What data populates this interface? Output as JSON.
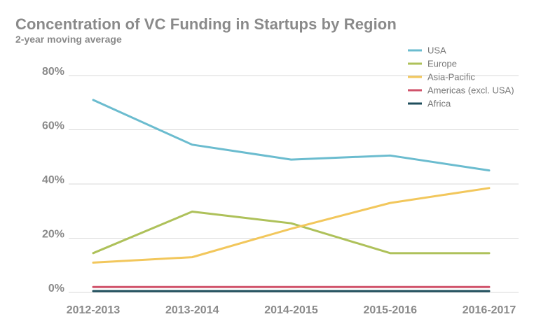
{
  "chart_data": {
    "type": "line",
    "title": "Concentration of VC Funding in Startups by Region",
    "subtitle": "2-year moving average",
    "xlabel": "",
    "ylabel": "",
    "categories": [
      "2012-2013",
      "2013-2014",
      "2014-2015",
      "2015-2016",
      "2016-2017"
    ],
    "ylim": [
      0,
      80
    ],
    "yticks": [
      0,
      20,
      40,
      60,
      80
    ],
    "ytick_labels": [
      "0%",
      "20%",
      "40%",
      "60%",
      "80%"
    ],
    "grid": true,
    "legend_position": "top-right",
    "series": [
      {
        "name": "USA",
        "color": "#6bbccf",
        "values": [
          71,
          54.5,
          49,
          50.5,
          45
        ]
      },
      {
        "name": "Europe",
        "color": "#aec15a",
        "values": [
          14.5,
          29.8,
          25.5,
          14.5,
          14.5
        ]
      },
      {
        "name": "Asia-Pacific",
        "color": "#f2c75c",
        "values": [
          11,
          13,
          23.5,
          33,
          38.5
        ]
      },
      {
        "name": "Americas (excl. USA)",
        "color": "#d0536b",
        "values": [
          2,
          2,
          2,
          2,
          2
        ]
      },
      {
        "name": "Africa",
        "color": "#1f4e5c",
        "values": [
          0.5,
          0.5,
          0.5,
          0.5,
          0.5
        ]
      }
    ]
  }
}
